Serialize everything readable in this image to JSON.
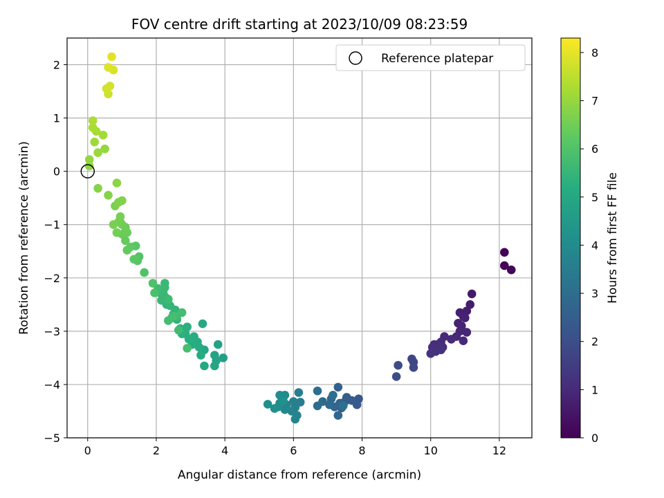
{
  "chart_data": {
    "type": "scatter",
    "title": "FOV centre drift starting at 2023/10/09 08:23:59",
    "xlabel": "Angular distance from reference (arcmin)",
    "ylabel": "Rotation from reference (arcmin)",
    "xlim": [
      -0.6,
      12.95
    ],
    "ylim": [
      -5.0,
      2.5
    ],
    "xticks": [
      0,
      2,
      4,
      6,
      8,
      10,
      12
    ],
    "yticks": [
      -5,
      -4,
      -3,
      -2,
      -1,
      0,
      1,
      2
    ],
    "grid": true,
    "legend": {
      "placement": "top-right",
      "entries": [
        "Reference platepar"
      ]
    },
    "reference_point": {
      "x": 0.0,
      "y": 0.0,
      "label": "Reference platepar"
    },
    "colorbar": {
      "label": "Hours from first FF file",
      "range": [
        0,
        8.3
      ],
      "ticks": [
        0,
        1,
        2,
        3,
        4,
        5,
        6,
        7,
        8
      ],
      "colormap": "viridis"
    },
    "series": [
      {
        "points": [
          [
            12.15,
            -1.52,
            0.05
          ],
          [
            12.15,
            -1.77,
            0.1
          ],
          [
            12.35,
            -1.85,
            0.15
          ],
          [
            11.2,
            -2.3,
            0.6
          ],
          [
            11.15,
            -2.5,
            0.65
          ],
          [
            11.05,
            -2.62,
            0.7
          ],
          [
            10.85,
            -2.65,
            0.75
          ],
          [
            11.0,
            -2.75,
            0.8
          ],
          [
            10.95,
            -2.72,
            0.82
          ],
          [
            10.8,
            -2.85,
            0.85
          ],
          [
            10.9,
            -2.9,
            0.88
          ],
          [
            11.05,
            -3.02,
            0.9
          ],
          [
            10.85,
            -3.0,
            0.92
          ],
          [
            10.75,
            -3.1,
            0.95
          ],
          [
            10.95,
            -3.18,
            0.97
          ],
          [
            10.6,
            -3.15,
            1.0
          ],
          [
            10.4,
            -3.1,
            1.02
          ],
          [
            10.3,
            -3.2,
            1.05
          ],
          [
            10.2,
            -3.25,
            1.08
          ],
          [
            10.1,
            -3.25,
            1.1
          ],
          [
            10.35,
            -3.3,
            1.12
          ],
          [
            10.05,
            -3.3,
            1.15
          ],
          [
            10.15,
            -3.38,
            1.17
          ],
          [
            10.3,
            -3.35,
            1.2
          ],
          [
            10.0,
            -3.42,
            1.22
          ],
          [
            9.45,
            -3.52,
            1.75
          ],
          [
            9.5,
            -3.58,
            1.8
          ],
          [
            9.5,
            -3.68,
            1.85
          ],
          [
            9.05,
            -3.64,
            1.9
          ],
          [
            9.0,
            -3.85,
            1.95
          ],
          [
            7.9,
            -4.27,
            2.3
          ],
          [
            7.85,
            -4.38,
            2.35
          ],
          [
            7.7,
            -4.3,
            2.4
          ],
          [
            7.55,
            -4.24,
            2.45
          ],
          [
            7.5,
            -4.32,
            2.5
          ],
          [
            7.4,
            -4.44,
            2.55
          ],
          [
            7.3,
            -4.05,
            2.6
          ],
          [
            7.35,
            -4.35,
            2.65
          ],
          [
            7.2,
            -4.42,
            2.7
          ],
          [
            7.3,
            -4.58,
            2.75
          ],
          [
            7.1,
            -4.27,
            2.8
          ],
          [
            7.05,
            -4.38,
            2.85
          ],
          [
            6.85,
            -4.32,
            2.9
          ],
          [
            6.7,
            -4.4,
            2.95
          ],
          [
            7.15,
            -4.2,
            3.0
          ],
          [
            6.7,
            -4.12,
            3.05
          ],
          [
            7.45,
            -4.4,
            3.1
          ],
          [
            6.2,
            -4.33,
            3.5
          ],
          [
            6.15,
            -4.15,
            3.55
          ],
          [
            6.0,
            -4.32,
            3.6
          ],
          [
            6.05,
            -4.43,
            3.65
          ],
          [
            5.95,
            -4.5,
            3.7
          ],
          [
            6.1,
            -4.58,
            3.75
          ],
          [
            6.05,
            -4.65,
            3.78
          ],
          [
            5.8,
            -4.38,
            3.8
          ],
          [
            5.75,
            -4.47,
            3.85
          ],
          [
            5.6,
            -4.35,
            3.9
          ],
          [
            5.75,
            -4.2,
            3.95
          ],
          [
            5.6,
            -4.2,
            4.0
          ],
          [
            5.55,
            -4.42,
            4.05
          ],
          [
            5.45,
            -4.45,
            4.1
          ],
          [
            5.25,
            -4.37,
            4.15
          ],
          [
            5.7,
            -4.3,
            4.2
          ],
          [
            3.95,
            -3.5,
            4.7
          ],
          [
            3.8,
            -3.25,
            4.75
          ],
          [
            3.7,
            -3.45,
            4.8
          ],
          [
            3.75,
            -3.55,
            4.85
          ],
          [
            3.7,
            -3.65,
            4.9
          ],
          [
            3.4,
            -3.35,
            4.95
          ],
          [
            3.35,
            -2.86,
            5.0
          ],
          [
            3.4,
            -3.65,
            5.05
          ],
          [
            3.3,
            -3.45,
            5.1
          ],
          [
            3.25,
            -3.3,
            5.12
          ],
          [
            3.2,
            -3.2,
            5.15
          ],
          [
            3.1,
            -3.1,
            5.18
          ],
          [
            3.05,
            -3.25,
            5.2
          ],
          [
            2.95,
            -3.15,
            5.22
          ],
          [
            2.9,
            -2.92,
            5.25
          ],
          [
            2.85,
            -3.05,
            5.28
          ],
          [
            2.75,
            -3.05,
            5.3
          ],
          [
            2.7,
            -2.95,
            5.32
          ],
          [
            2.6,
            -2.78,
            5.35
          ],
          [
            2.5,
            -2.68,
            5.38
          ],
          [
            2.55,
            -2.6,
            5.4
          ],
          [
            2.45,
            -2.75,
            5.42
          ],
          [
            2.4,
            -2.52,
            5.45
          ],
          [
            2.3,
            -2.5,
            5.48
          ],
          [
            2.25,
            -2.35,
            5.5
          ],
          [
            2.2,
            -2.25,
            5.52
          ],
          [
            2.15,
            -2.42,
            5.55
          ],
          [
            2.1,
            -2.28,
            5.58
          ],
          [
            2.25,
            -2.18,
            5.6
          ],
          [
            2.25,
            -2.1,
            5.62
          ],
          [
            2.05,
            -2.2,
            5.65
          ],
          [
            2.35,
            -2.4,
            5.68
          ],
          [
            2.6,
            -2.72,
            5.7
          ],
          [
            2.65,
            -2.98,
            5.72
          ],
          [
            2.35,
            -2.8,
            5.75
          ],
          [
            2.75,
            -2.65,
            5.78
          ],
          [
            2.9,
            -3.32,
            5.8
          ],
          [
            2.5,
            -2.72,
            5.82
          ],
          [
            1.95,
            -2.28,
            5.9
          ],
          [
            1.9,
            -2.1,
            5.95
          ],
          [
            1.65,
            -1.9,
            6.0
          ],
          [
            1.5,
            -1.6,
            6.05
          ],
          [
            1.45,
            -1.68,
            6.1
          ],
          [
            1.4,
            -1.4,
            6.15
          ],
          [
            1.35,
            -1.65,
            6.2
          ],
          [
            1.25,
            -1.42,
            6.25
          ],
          [
            1.15,
            -1.48,
            6.3
          ],
          [
            1.1,
            -1.3,
            6.35
          ],
          [
            1.0,
            -1.18,
            6.4
          ],
          [
            1.15,
            -1.15,
            6.42
          ],
          [
            1.1,
            -1.05,
            6.45
          ],
          [
            1.0,
            -1.0,
            6.48
          ],
          [
            0.95,
            -0.95,
            6.5
          ],
          [
            0.85,
            -1.15,
            6.52
          ],
          [
            0.9,
            -0.95,
            6.55
          ],
          [
            0.95,
            -0.85,
            6.58
          ],
          [
            0.75,
            -1.0,
            6.6
          ],
          [
            0.8,
            -0.65,
            6.65
          ],
          [
            0.9,
            -0.58,
            6.7
          ],
          [
            1.0,
            -0.55,
            6.72
          ],
          [
            0.6,
            -0.45,
            6.75
          ],
          [
            0.3,
            -0.32,
            6.8
          ],
          [
            0.85,
            -0.22,
            6.85
          ],
          [
            0.05,
            0.1,
            6.9
          ],
          [
            0.05,
            0.22,
            6.95
          ],
          [
            0.5,
            0.42,
            7.0
          ],
          [
            0.3,
            0.35,
            7.05
          ],
          [
            0.2,
            0.55,
            7.1
          ],
          [
            0.45,
            0.68,
            7.15
          ],
          [
            0.25,
            0.75,
            7.2
          ],
          [
            0.15,
            0.82,
            7.25
          ],
          [
            0.15,
            0.95,
            7.3
          ],
          [
            0.6,
            1.45,
            7.7
          ],
          [
            0.55,
            1.55,
            7.75
          ],
          [
            0.65,
            1.6,
            7.8
          ],
          [
            0.75,
            1.9,
            7.85
          ],
          [
            0.6,
            1.95,
            7.9
          ],
          [
            0.7,
            2.15,
            7.95
          ]
        ]
      }
    ]
  }
}
